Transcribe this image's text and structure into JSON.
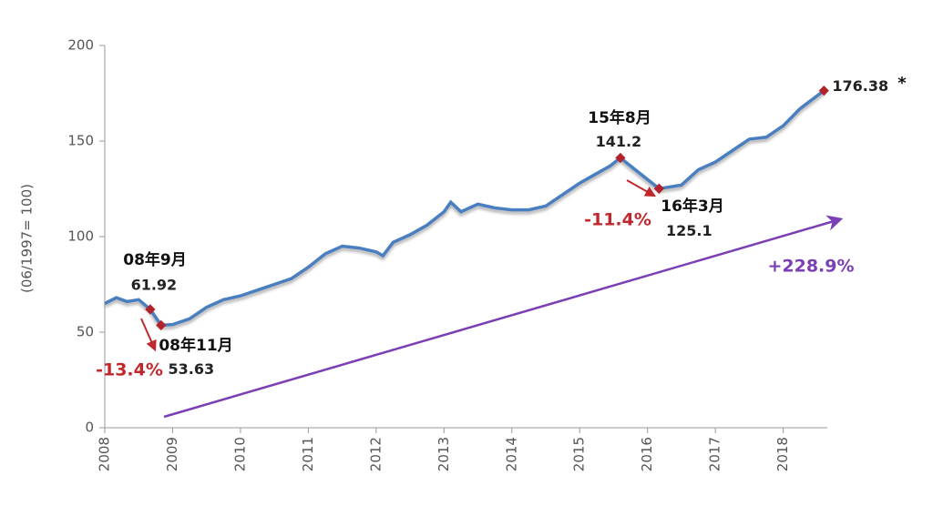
{
  "chart_data": {
    "type": "line",
    "y_label": "(06/1997= 100)",
    "x": [
      2008.0,
      2008.17,
      2008.33,
      2008.5,
      2008.67,
      2008.83,
      2009.0,
      2009.25,
      2009.5,
      2009.75,
      2010.0,
      2010.25,
      2010.5,
      2010.75,
      2011.0,
      2011.25,
      2011.5,
      2011.75,
      2012.0,
      2012.1,
      2012.25,
      2012.5,
      2012.75,
      2013.0,
      2013.1,
      2013.25,
      2013.5,
      2013.75,
      2014.0,
      2014.25,
      2014.5,
      2014.75,
      2015.0,
      2015.25,
      2015.45,
      2015.6,
      2016.17,
      2016.5,
      2016.75,
      2017.0,
      2017.25,
      2017.5,
      2017.75,
      2018.0,
      2018.25,
      2018.6
    ],
    "series": [
      {
        "color": "#4a7fc1",
        "values": [
          65,
          68,
          66,
          67,
          61.92,
          53.63,
          54,
          57,
          63,
          67,
          69,
          72,
          75,
          78,
          84,
          91,
          95,
          94,
          92,
          90,
          97,
          101,
          106,
          113,
          118,
          113,
          117,
          115,
          114,
          114,
          116,
          122,
          128,
          133,
          137,
          141.2,
          125.1,
          127,
          135,
          139,
          145,
          151,
          152,
          158,
          167,
          176.38
        ]
      }
    ],
    "marker_color": "#b2222a",
    "annotations": [
      "08年9月",
      "08年11月",
      "15年8月",
      "16年3月",
      "-13.4%",
      "-11.4%",
      "+228.9%",
      "*"
    ],
    "annotation_colors": [
      "#111111",
      "#111111",
      "#111111",
      "#111111",
      "#c0282d",
      "#c0282d",
      "#7b3fb5",
      "#111111"
    ],
    "xlim": [
      2008,
      2018.65
    ],
    "xticks": [
      2008,
      2009,
      2010,
      2011,
      2012,
      2013,
      2014,
      2015,
      2016,
      2017,
      2018
    ],
    "ylim": [
      0,
      200
    ],
    "yticks": [
      0,
      50,
      100,
      150,
      200
    ]
  }
}
